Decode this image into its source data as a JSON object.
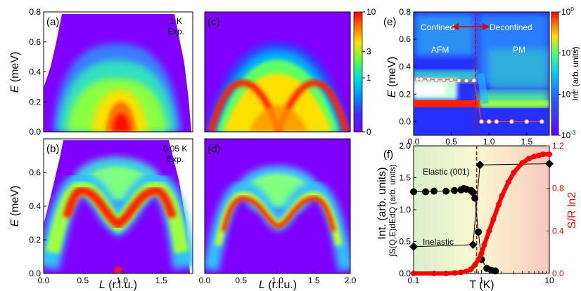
{
  "figure": {
    "panel_labels": [
      "(a)",
      "(b)",
      "(c)",
      "(d)",
      "(e)",
      "(f)"
    ],
    "annot_a": [
      "1 K",
      "Exp."
    ],
    "annot_b": [
      "0.05 K",
      "Exp."
    ],
    "ylabel_E": "E (meV)",
    "ylabel_E_var": "E",
    "ylabel_E_unit": "(meV)",
    "xlabel_L": "L (r.l.u.)",
    "xlabel_L_var": "L",
    "xlabel_L_unit": "(r.l.u.)",
    "colorbar_label": "Int. (arb. units)"
  },
  "chart_data": [
    {
      "id": "a",
      "type": "heatmap",
      "title": "(a) 1 K Exp.",
      "xlabel": "L (r.l.u.)",
      "ylabel": "E (meV)",
      "xlim": [
        0,
        1.9
      ],
      "ylim": [
        0,
        0.8
      ],
      "xticks": [
        "0.0",
        "0.5",
        "1.0",
        "1.5"
      ],
      "yticks": [
        "0.0",
        "0.2",
        "0.4",
        "0.6",
        "0.8"
      ],
      "features": "broad continuum; intense near L=1, E<0.15 meV; upper edge ~0.63 meV"
    },
    {
      "id": "b",
      "type": "heatmap",
      "title": "(b) 0.05 K Exp.",
      "xlabel": "L (r.l.u.)",
      "ylabel": "E (meV)",
      "xlim": [
        0,
        1.9
      ],
      "ylim": [
        0,
        0.8
      ],
      "xticks": [
        "0.0",
        "0.5",
        "1.0",
        "1.5"
      ],
      "yticks": [
        "0.0",
        "0.2",
        "0.4",
        "0.6"
      ],
      "features": "dispersive band, max ~0.45 meV at L≈0.5,1.5, min ~0.29 meV at L=1"
    },
    {
      "id": "c",
      "type": "heatmap",
      "title": "(c)",
      "xlabel": "L (r.l.u.)",
      "xlim": [
        0,
        2.0
      ],
      "ylim": [
        0,
        0.8
      ],
      "features": "two domes with apex ~0.5 meV at L≈0.5,1.5, reaching 0 at L=1"
    },
    {
      "id": "d",
      "type": "heatmap",
      "title": "(d)",
      "xlabel": "L (r.l.u.)",
      "xlim": [
        0,
        2.0
      ],
      "ylim": [
        0,
        0.8
      ],
      "xticks": [
        "0.0",
        "0.5",
        "1.0",
        "1.5",
        "2.0"
      ],
      "features": "dispersive band, max ~0.45 meV, min ~0.33 meV at L=1"
    },
    {
      "id": "colorbar",
      "type": "colorbar",
      "label": "Int. (arb. units)",
      "ticks": [
        "0",
        "1",
        "3",
        "10"
      ],
      "range": [
        0,
        10
      ]
    },
    {
      "id": "e",
      "type": "heatmap",
      "title": "(e)",
      "xlabel": "",
      "ylabel": "E (meV)",
      "xlim": [
        0,
        1.8
      ],
      "ylim": [
        -0.1,
        0.8
      ],
      "xticks": [
        "0.0",
        "0.5",
        "1.0",
        "1.5"
      ],
      "yticks": [
        "0.0",
        "0.2",
        "0.4",
        "0.6",
        "0.8"
      ],
      "regions": [
        "Confined",
        "Deconfined",
        "AFM",
        "PM"
      ],
      "transition": 0.85,
      "gap_points": {
        "x": [
          0.05,
          0.1,
          0.2,
          0.3,
          0.4,
          0.5,
          0.6,
          0.7,
          0.8,
          0.9,
          1.0,
          1.1,
          1.3,
          1.5,
          1.7
        ],
        "y": [
          0.31,
          0.31,
          0.31,
          0.305,
          0.305,
          0.305,
          0.3,
          0.3,
          0.3,
          0.0,
          0.0,
          0.0,
          0.0,
          0.0,
          0.0
        ]
      },
      "colorbar": {
        "label": "Int. (arb. units)",
        "ticks": [
          "10^0",
          "10^-1",
          "10^-2",
          "10^-3"
        ]
      }
    },
    {
      "id": "f",
      "type": "scatter",
      "title": "(f)",
      "xlabel": "T (K)",
      "xscale": "log",
      "xlim": [
        0.1,
        10
      ],
      "xticks": [
        "0.1",
        "1",
        "10"
      ],
      "ylabel": "∫S(Q,E)dEdQ (arb. units)",
      "ylim": [
        0,
        2.0
      ],
      "yticks": [
        "0.0",
        "0.5",
        "1.0",
        "1.5",
        "2.0"
      ],
      "y2label": "S/R ln2",
      "y2lim": [
        0,
        1.2
      ],
      "y2ticks": [
        "0.0",
        "0.4",
        "0.8",
        "1.2"
      ],
      "transition_T": 0.85,
      "series": [
        {
          "name": "Elastic (001)",
          "marker": "circle",
          "x": [
            0.1,
            0.15,
            0.2,
            0.3,
            0.4,
            0.5,
            0.55,
            0.6,
            0.7,
            0.75,
            0.8,
            0.9,
            1.0,
            1.2,
            1.4,
            1.6
          ],
          "y": [
            1.28,
            1.28,
            1.29,
            1.29,
            1.3,
            1.31,
            1.33,
            1.32,
            1.3,
            1.27,
            1.18,
            0.65,
            0.22,
            0.08,
            0.05,
            0.04
          ]
        },
        {
          "name": "Inelastic",
          "marker": "diamond",
          "x": [
            0.1,
            0.75,
            0.95,
            10
          ],
          "y": [
            0.42,
            0.45,
            1.7,
            1.72
          ]
        },
        {
          "name": "S/R ln2",
          "axis": "right",
          "color": "#ff0000",
          "x": [
            0.1,
            0.2,
            0.3,
            0.4,
            0.5,
            0.6,
            0.7,
            0.8,
            0.9,
            1.0,
            1.1,
            1.3,
            1.5,
            1.8,
            2.0,
            2.5,
            3.0,
            4.0,
            5.0,
            6.0,
            7.0,
            8.0,
            10.0
          ],
          "y": [
            0.0,
            0.0,
            0.0,
            0.005,
            0.01,
            0.02,
            0.04,
            0.08,
            0.13,
            0.19,
            0.27,
            0.4,
            0.51,
            0.65,
            0.73,
            0.86,
            0.95,
            1.04,
            1.08,
            1.1,
            1.11,
            1.12,
            1.12
          ]
        }
      ],
      "labels": [
        "Elastic (001)",
        "Inelastic"
      ]
    }
  ]
}
